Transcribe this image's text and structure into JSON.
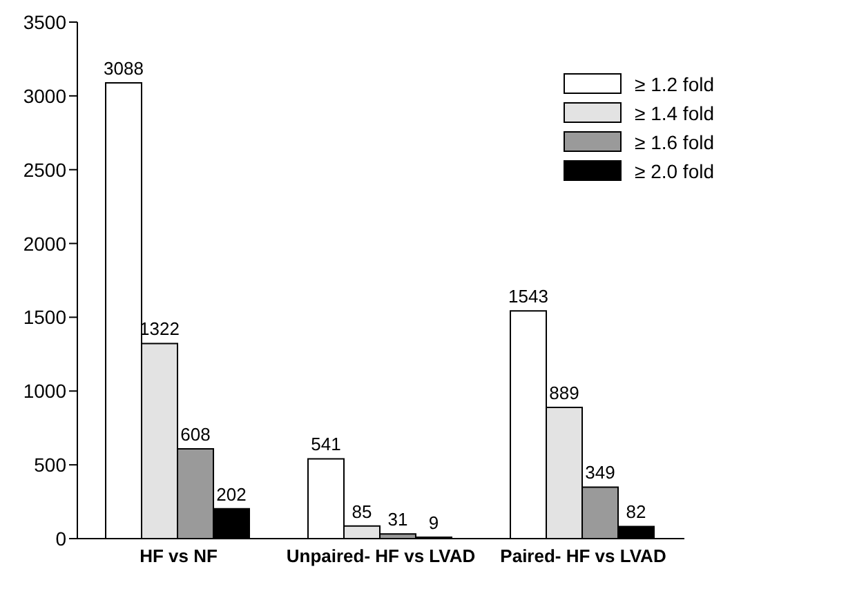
{
  "chart_data": {
    "type": "bar",
    "categories": [
      "HF vs NF",
      "Unpaired- HF vs LVAD",
      "Paired- HF vs LVAD"
    ],
    "series": [
      {
        "name": "≥ 1.2 fold",
        "color": "#ffffff",
        "values": [
          3088,
          541,
          1543
        ]
      },
      {
        "name": "≥ 1.4 fold",
        "color": "#e3e3e3",
        "values": [
          1322,
          85,
          889
        ]
      },
      {
        "name": "≥ 1.6 fold",
        "color": "#9a9a9a",
        "values": [
          608,
          31,
          349
        ]
      },
      {
        "name": "≥ 2.0 fold",
        "color": "#000000",
        "values": [
          202,
          9,
          82
        ]
      }
    ],
    "ylim": [
      0,
      3500
    ],
    "yticks": [
      0,
      500,
      1000,
      1500,
      2000,
      2500,
      3000,
      3500
    ],
    "data_labels": true,
    "grid": false,
    "legend": "top right"
  }
}
